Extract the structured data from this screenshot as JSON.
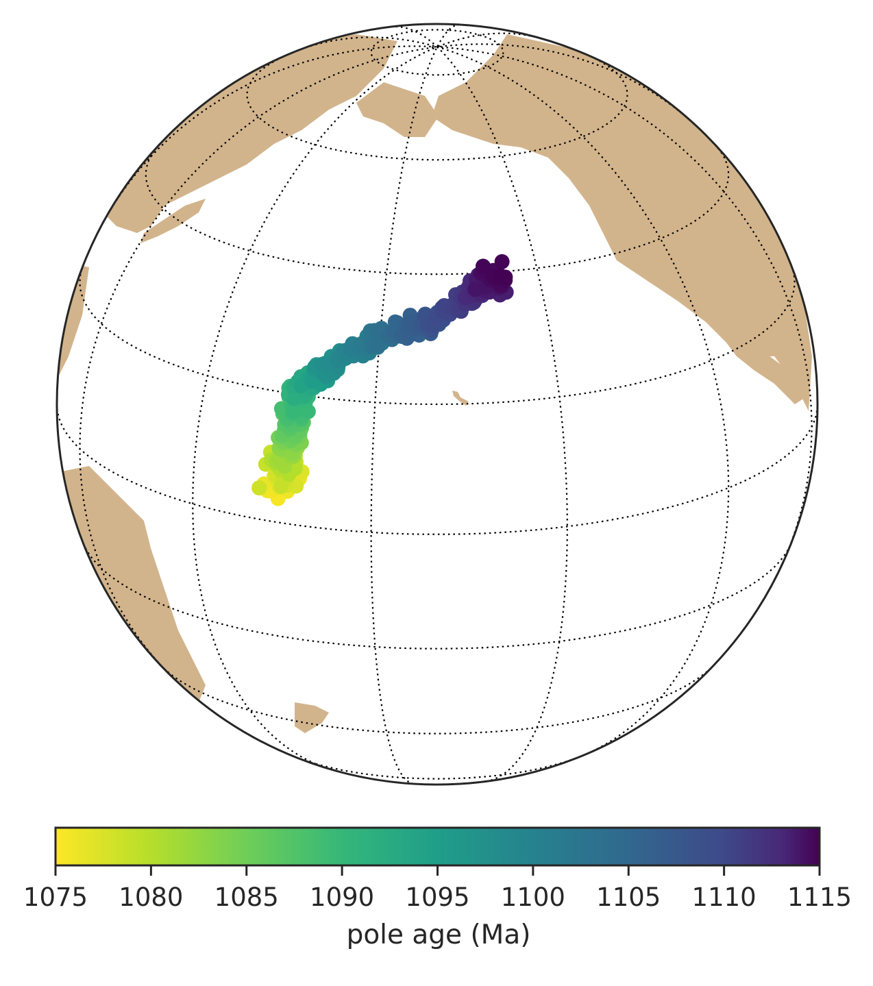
{
  "chart_data": {
    "type": "scatter",
    "projection": "orthographic",
    "graticule": {
      "style": "dotted",
      "color": "#000000"
    },
    "land_color": "#d2b48c",
    "ocean_color": "#ffffff",
    "series": [
      {
        "marker_color_map": "viridis_r",
        "points_approx": [
          {
            "lon": 165,
            "lat": 5,
            "age": 1075
          },
          {
            "lon": 166,
            "lat": 10,
            "age": 1080
          },
          {
            "lon": 167,
            "lat": 15,
            "age": 1085
          },
          {
            "lon": 167,
            "lat": 21,
            "age": 1090
          },
          {
            "lon": 172,
            "lat": 25,
            "age": 1095
          },
          {
            "lon": 180,
            "lat": 30,
            "age": 1100
          },
          {
            "lon": 190,
            "lat": 33,
            "age": 1105
          },
          {
            "lon": 198,
            "lat": 37,
            "age": 1110
          },
          {
            "lon": 202,
            "lat": 40,
            "age": 1115
          }
        ]
      }
    ],
    "colorbar": {
      "cmap": "viridis_r",
      "min": 1075,
      "max": 1115,
      "ticks": [
        "1075",
        "1080",
        "1085",
        "1090",
        "1095",
        "1100",
        "1105",
        "1110",
        "1115"
      ],
      "label": "pole age (Ma)",
      "orientation": "horizontal",
      "placement": "bottom"
    }
  }
}
